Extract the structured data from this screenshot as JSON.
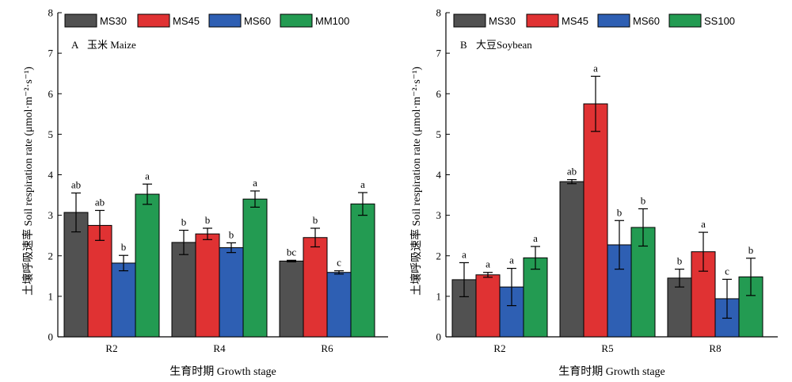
{
  "chart_data": [
    {
      "type": "bar",
      "panel_label": "A",
      "title": "玉米 Maize",
      "xlabel": "生育时期 Growth stage",
      "ylabel": "土壤呼吸速率 Soil respiration rate (μmol·m⁻²·s⁻¹)",
      "ylim": [
        0,
        8
      ],
      "yticks": [
        0,
        1,
        2,
        3,
        4,
        5,
        6,
        7,
        8
      ],
      "categories": [
        "R2",
        "R4",
        "R6"
      ],
      "legend_position": "top-left",
      "series": [
        {
          "name": "MS30",
          "color": "#515151",
          "values": [
            3.07,
            2.33,
            1.87
          ],
          "errors": [
            0.48,
            0.3,
            0.02
          ],
          "labels": [
            "ab",
            "b",
            "bc"
          ]
        },
        {
          "name": "MS45",
          "color": "#e03233",
          "values": [
            2.75,
            2.54,
            2.45
          ],
          "errors": [
            0.37,
            0.14,
            0.23
          ],
          "labels": [
            "ab",
            "b",
            "b"
          ]
        },
        {
          "name": "MS60",
          "color": "#2e5fb3",
          "values": [
            1.82,
            2.2,
            1.59
          ],
          "errors": [
            0.19,
            0.12,
            0.04
          ],
          "labels": [
            "b",
            "b",
            "c"
          ]
        },
        {
          "name": "MM100",
          "color": "#239b52",
          "values": [
            3.52,
            3.4,
            3.28
          ],
          "errors": [
            0.25,
            0.2,
            0.28
          ],
          "labels": [
            "a",
            "a",
            "a"
          ]
        }
      ]
    },
    {
      "type": "bar",
      "panel_label": "B",
      "title": "大豆Soybean",
      "xlabel": "生育时期 Growth stage",
      "ylabel": "土壤呼吸速率 Soil respiration rate (μmol·m⁻²·s⁻¹)",
      "ylim": [
        0,
        8
      ],
      "yticks": [
        0,
        1,
        2,
        3,
        4,
        5,
        6,
        7,
        8
      ],
      "categories": [
        "R2",
        "R5",
        "R8"
      ],
      "legend_position": "top-left",
      "series": [
        {
          "name": "MS30",
          "color": "#515151",
          "values": [
            1.41,
            3.83,
            1.45
          ],
          "errors": [
            0.42,
            0.05,
            0.22
          ],
          "labels": [
            "a",
            "ab",
            "b"
          ]
        },
        {
          "name": "MS45",
          "color": "#e03233",
          "values": [
            1.53,
            5.75,
            2.1
          ],
          "errors": [
            0.06,
            0.68,
            0.48
          ],
          "labels": [
            "a",
            "a",
            "a"
          ]
        },
        {
          "name": "MS60",
          "color": "#2e5fb3",
          "values": [
            1.23,
            2.27,
            0.94
          ],
          "errors": [
            0.46,
            0.6,
            0.48
          ],
          "labels": [
            "a",
            "b",
            "c"
          ]
        },
        {
          "name": "SS100",
          "color": "#239b52",
          "values": [
            1.95,
            2.7,
            1.48
          ],
          "errors": [
            0.28,
            0.46,
            0.46
          ],
          "labels": [
            "a",
            "b",
            "b"
          ]
        }
      ]
    }
  ]
}
